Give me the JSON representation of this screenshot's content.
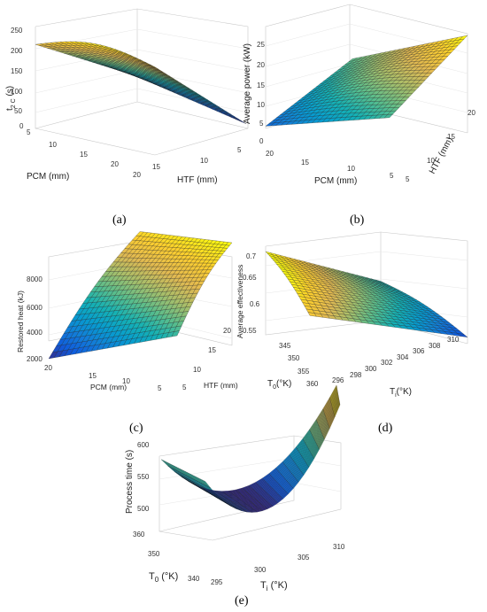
{
  "chart_data": [
    {
      "id": "a",
      "type": "surface",
      "caption": "(a)",
      "xlabel": "PCM (mm)",
      "ylabel": "HTF (mm)",
      "zlabel_main": "t",
      "zlabel_sub": "2 C",
      "zlabel_tail": " (s)",
      "xticks": [
        "5",
        "10",
        "15",
        "20"
      ],
      "yticks": [
        "20",
        "15",
        "10",
        "5"
      ],
      "zticks": [
        "0",
        "50",
        "100",
        "150",
        "200",
        "250"
      ],
      "zlim": [
        0,
        250
      ],
      "corners_z": {
        "pcm5_htf20": 200,
        "pcm20_htf20": 210,
        "pcm5_htf5": 70,
        "pcm20_htf5": 5
      }
    },
    {
      "id": "b",
      "type": "surface",
      "caption": "(b)",
      "xlabel": "PCM (mm)",
      "ylabel": "HTF (mm)",
      "zlabel": "Average power (kW)",
      "xticks": [
        "20",
        "15",
        "10",
        "5"
      ],
      "yticks": [
        "5",
        "10",
        "15",
        "20"
      ],
      "zticks": [
        "0",
        "5",
        "10",
        "15",
        "20",
        "25"
      ],
      "zlim": [
        0,
        25
      ],
      "corners_z": {
        "pcm20_htf5": 4,
        "pcm5_htf5": 13,
        "pcm20_htf20": 14,
        "pcm5_htf20": 26
      }
    },
    {
      "id": "c",
      "type": "surface",
      "caption": "(c)",
      "xlabel": "PCM (mm)",
      "ylabel": "HTF (mm)",
      "zlabel": "Restored heat (kJ)",
      "xticks": [
        "20",
        "15",
        "10",
        "5"
      ],
      "yticks": [
        "5",
        "10",
        "15",
        "20"
      ],
      "zticks": [
        "2000",
        "4000",
        "6000",
        "8000"
      ],
      "zlim": [
        2000,
        8000
      ],
      "corners_z": {
        "pcm20_htf5": 2000,
        "pcm20_htf20": 7500,
        "pcm5_htf5": 5000,
        "pcm5_htf20": 9000
      }
    },
    {
      "id": "d",
      "type": "surface",
      "caption": "(d)",
      "xlabel_main": "T",
      "xlabel_sub": "0",
      "xlabel_tail": "(°K)",
      "ylabel_main": "T",
      "ylabel_sub": "i",
      "ylabel_tail": "(°K)",
      "zlabel": "Average effectiveness",
      "xticks": [
        "345",
        "350",
        "355",
        "360"
      ],
      "yticks": [
        "296",
        "298",
        "300",
        "302",
        "304",
        "306",
        "308",
        "310"
      ],
      "zticks": [
        "0.55",
        "0.6",
        "0.65",
        "0.7"
      ],
      "zlim": [
        0.55,
        0.7
      ],
      "corners_z": {
        "t0_345_ti_296": 0.7,
        "t0_360_ti_296": 0.68,
        "t0_345_ti_310": 0.62,
        "t0_360_ti_310": 0.56
      }
    },
    {
      "id": "e",
      "type": "surface",
      "caption": "(e)",
      "xlabel_main": "T",
      "xlabel_sub": "i",
      "xlabel_tail": " (°K)",
      "ylabel_main": "T",
      "ylabel_sub": "0",
      "ylabel_tail": " (°K)",
      "zlabel": "Process time (s)",
      "xticks": [
        "295",
        "300",
        "305",
        "310"
      ],
      "yticks": [
        "360",
        "350",
        "340"
      ],
      "zticks": [
        "500",
        "550",
        "600"
      ],
      "zlim": [
        480,
        610
      ],
      "corners_z": {
        "ti_295": 550,
        "ti_302_min": 482,
        "ti_310": 610
      }
    }
  ]
}
